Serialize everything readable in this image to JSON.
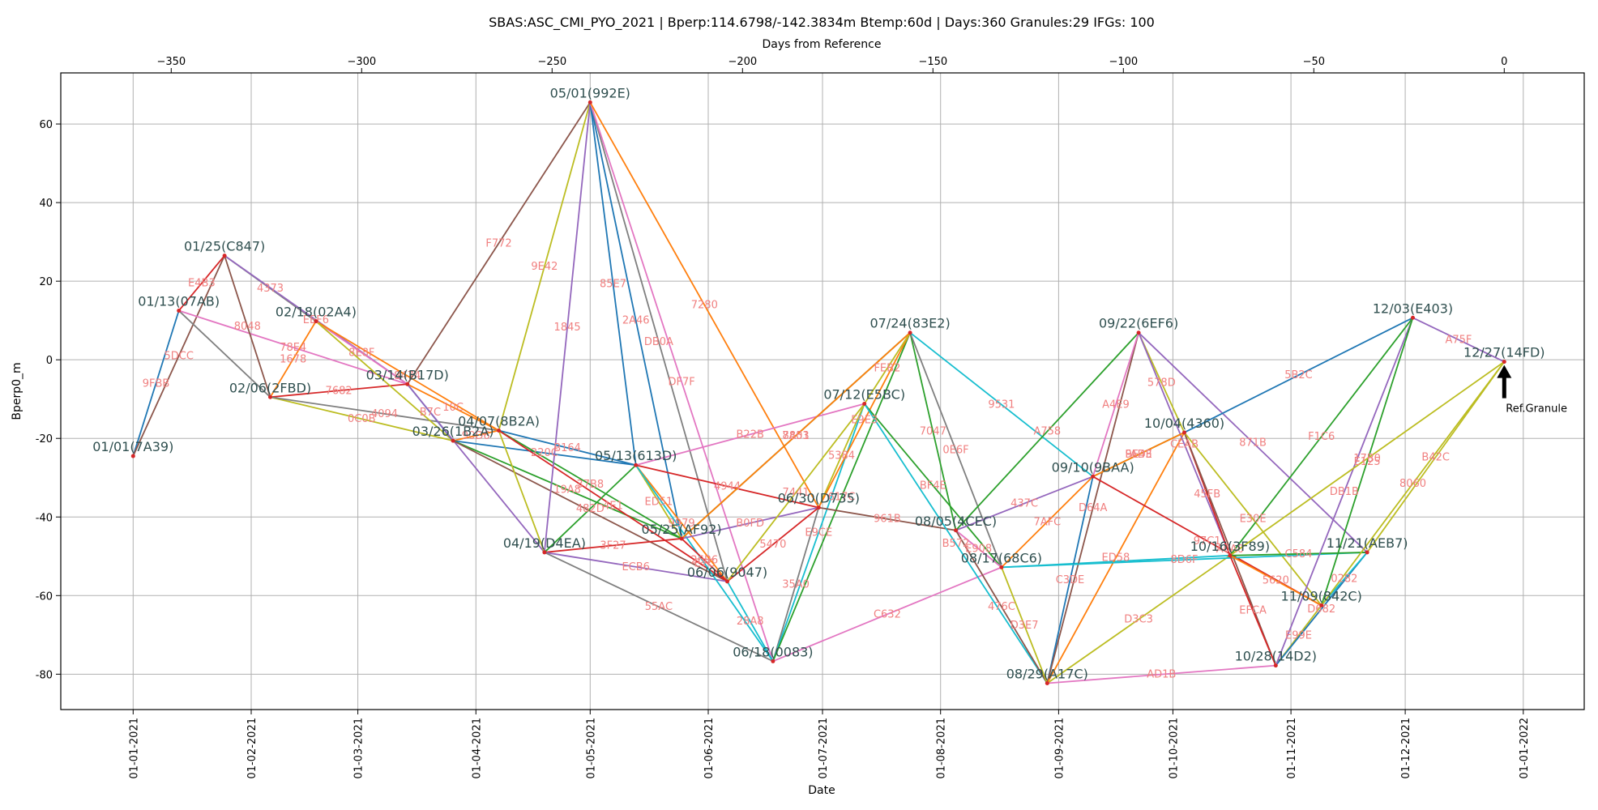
{
  "chart_data": {
    "type": "line",
    "title": "SBAS:ASC_CMI_PYO_2021 | Bperp:114.6798/-142.3834m Btemp:60d | Days:360 Granules:29 IFGs: 100",
    "xlabel": "Date",
    "ylabel": "Bperp0_m",
    "top_xlabel": "Days from Reference",
    "grid": true,
    "reference_date": "2021-12-27",
    "xlim": [
      "2020-12-13",
      "2022-01-17"
    ],
    "ylim": [
      -89,
      73
    ],
    "y_ticks": [
      -80,
      -60,
      -40,
      -20,
      0,
      20,
      40,
      60
    ],
    "x_ticks": [
      {
        "date": "2021-01-01",
        "label": "01-01-2021"
      },
      {
        "date": "2021-02-01",
        "label": "01-02-2021"
      },
      {
        "date": "2021-03-01",
        "label": "01-03-2021"
      },
      {
        "date": "2021-04-01",
        "label": "01-04-2021"
      },
      {
        "date": "2021-05-01",
        "label": "01-05-2021"
      },
      {
        "date": "2021-06-01",
        "label": "01-06-2021"
      },
      {
        "date": "2021-07-01",
        "label": "01-07-2021"
      },
      {
        "date": "2021-08-01",
        "label": "01-08-2021"
      },
      {
        "date": "2021-09-01",
        "label": "01-09-2021"
      },
      {
        "date": "2021-10-01",
        "label": "01-10-2021"
      },
      {
        "date": "2021-11-01",
        "label": "01-11-2021"
      },
      {
        "date": "2021-12-01",
        "label": "01-12-2021"
      },
      {
        "date": "2022-01-01",
        "label": "01-01-2022"
      }
    ],
    "top_ticks": [
      -350,
      -300,
      -250,
      -200,
      -150,
      -100,
      -50,
      0
    ],
    "reference_label": "Ref.Granule",
    "granules": [
      {
        "id": "A",
        "date": "2021-01-01",
        "bperp": -24.5,
        "label": "01/01(7A39)"
      },
      {
        "id": "B",
        "date": "2021-01-13",
        "bperp": 12.5,
        "label": "01/13(07AB)"
      },
      {
        "id": "C",
        "date": "2021-01-25",
        "bperp": 26.5,
        "label": "01/25(C847)"
      },
      {
        "id": "D",
        "date": "2021-02-06",
        "bperp": -9.5,
        "label": "02/06(2FBD)"
      },
      {
        "id": "E",
        "date": "2021-02-18",
        "bperp": 9.8,
        "label": "02/18(02A4)"
      },
      {
        "id": "F",
        "date": "2021-03-14",
        "bperp": -6.2,
        "label": "03/14(B17D)"
      },
      {
        "id": "G",
        "date": "2021-03-26",
        "bperp": -20.6,
        "label": "03/26(1B2A)"
      },
      {
        "id": "H",
        "date": "2021-04-07",
        "bperp": -18.0,
        "label": "04/07(8B2A)"
      },
      {
        "id": "I",
        "date": "2021-04-19",
        "bperp": -49.0,
        "label": "04/19(D4EA)"
      },
      {
        "id": "J",
        "date": "2021-05-01",
        "bperp": 65.5,
        "label": "05/01(992E)"
      },
      {
        "id": "K",
        "date": "2021-05-13",
        "bperp": -26.8,
        "label": "05/13(613D)"
      },
      {
        "id": "L",
        "date": "2021-05-25",
        "bperp": -45.5,
        "label": "05/25(AF92)"
      },
      {
        "id": "M",
        "date": "2021-06-06",
        "bperp": -56.4,
        "label": "06/06(9047)"
      },
      {
        "id": "N",
        "date": "2021-06-18",
        "bperp": -76.7,
        "label": "06/18(0083)"
      },
      {
        "id": "O",
        "date": "2021-06-30",
        "bperp": -37.6,
        "label": "06/30(D735)"
      },
      {
        "id": "P",
        "date": "2021-07-12",
        "bperp": -11.2,
        "label": "07/12(E5BC)"
      },
      {
        "id": "Q",
        "date": "2021-07-24",
        "bperp": 6.9,
        "label": "07/24(83E2)"
      },
      {
        "id": "R",
        "date": "2021-08-05",
        "bperp": -43.4,
        "label": "08/05(4CEC)"
      },
      {
        "id": "S",
        "date": "2021-08-17",
        "bperp": -52.8,
        "label": "08/17(68C6)"
      },
      {
        "id": "T",
        "date": "2021-08-29",
        "bperp": -82.3,
        "label": "08/29(A17C)"
      },
      {
        "id": "U",
        "date": "2021-09-10",
        "bperp": -29.7,
        "label": "09/10(9BAA)"
      },
      {
        "id": "V",
        "date": "2021-09-22",
        "bperp": 6.9,
        "label": "09/22(6EF6)"
      },
      {
        "id": "W",
        "date": "2021-10-04",
        "bperp": -18.5,
        "label": "10/04(4360)"
      },
      {
        "id": "X",
        "date": "2021-10-16",
        "bperp": -49.8,
        "label": "10/16(3F89)"
      },
      {
        "id": "Y",
        "date": "2021-10-28",
        "bperp": -77.8,
        "label": "10/28(14D2)"
      },
      {
        "id": "Z",
        "date": "2021-11-09",
        "bperp": -62.5,
        "label": "11/09(842C)"
      },
      {
        "id": "a",
        "date": "2021-11-21",
        "bperp": -49.0,
        "label": "11/21(AEB7)"
      },
      {
        "id": "b",
        "date": "2021-12-03",
        "bperp": 10.7,
        "label": "12/03(E403)"
      },
      {
        "id": "c",
        "date": "2021-12-27",
        "bperp": -0.5,
        "label": "12/27(14FD)"
      }
    ],
    "ifgs": [
      {
        "from": "A",
        "to": "B",
        "label": "9FBB",
        "color": "#1f77b4"
      },
      {
        "from": "A",
        "to": "C",
        "label": "5DCC",
        "color": "#8c564b"
      },
      {
        "from": "B",
        "to": "C",
        "label": "E4B3",
        "color": "#d62728"
      },
      {
        "from": "B",
        "to": "D",
        "label": "",
        "color": "#7f7f7f"
      },
      {
        "from": "B",
        "to": "F",
        "label": "78E4",
        "color": "#e377c2"
      },
      {
        "from": "C",
        "to": "D",
        "label": "8048",
        "color": "#8c564b"
      },
      {
        "from": "C",
        "to": "E",
        "label": "4373",
        "color": "#7f7f7f"
      },
      {
        "from": "C",
        "to": "F",
        "label": "EEF6",
        "color": "#9467bd"
      },
      {
        "from": "D",
        "to": "E",
        "label": "1678",
        "color": "#ff7f0e"
      },
      {
        "from": "D",
        "to": "F",
        "label": "7682",
        "color": "#d62728"
      },
      {
        "from": "D",
        "to": "G",
        "label": "0C0B",
        "color": "#bcbd22"
      },
      {
        "from": "D",
        "to": "H",
        "label": "4094",
        "color": "#7f7f7f"
      },
      {
        "from": "E",
        "to": "F",
        "label": "8E8F",
        "color": "#e377c2"
      },
      {
        "from": "E",
        "to": "H",
        "label": "8474",
        "color": "#ff7f0e"
      },
      {
        "from": "E",
        "to": "G",
        "label": "",
        "color": "#bcbd22"
      },
      {
        "from": "F",
        "to": "G",
        "label": "B7C",
        "color": "#1f77b4"
      },
      {
        "from": "F",
        "to": "H",
        "label": "10C",
        "color": "#ff7f0e"
      },
      {
        "from": "F",
        "to": "I",
        "label": "",
        "color": "#9467bd"
      },
      {
        "from": "F",
        "to": "J",
        "label": "F772",
        "color": "#8c564b"
      },
      {
        "from": "G",
        "to": "H",
        "label": "90D6",
        "color": "#ff7f0e"
      },
      {
        "from": "G",
        "to": "K",
        "label": "220C",
        "color": "#1f77b4"
      },
      {
        "from": "G",
        "to": "L",
        "label": "19A8",
        "color": "#2ca02c"
      },
      {
        "from": "G",
        "to": "M",
        "label": "",
        "color": "#8c564b"
      },
      {
        "from": "H",
        "to": "I",
        "label": "",
        "color": "#bcbd22"
      },
      {
        "from": "H",
        "to": "J",
        "label": "9E42",
        "color": "#bcbd22"
      },
      {
        "from": "H",
        "to": "K",
        "label": "B164",
        "color": "#1f77b4"
      },
      {
        "from": "H",
        "to": "L",
        "label": "37B8",
        "color": "#2ca02c"
      },
      {
        "from": "H",
        "to": "M",
        "label": "4E1",
        "color": "#d62728"
      },
      {
        "from": "I",
        "to": "J",
        "label": "1845",
        "color": "#9467bd"
      },
      {
        "from": "I",
        "to": "L",
        "label": "3F27",
        "color": "#d62728"
      },
      {
        "from": "I",
        "to": "M",
        "label": "ECB6",
        "color": "#9467bd"
      },
      {
        "from": "I",
        "to": "N",
        "label": "55AC",
        "color": "#7f7f7f"
      },
      {
        "from": "J",
        "to": "K",
        "label": "85E7",
        "color": "#1f77b4"
      },
      {
        "from": "J",
        "to": "L",
        "label": "2A46",
        "color": "#1f77b4"
      },
      {
        "from": "J",
        "to": "M",
        "label": "DB0A",
        "color": "#7f7f7f"
      },
      {
        "from": "J",
        "to": "N",
        "label": "DF7F",
        "color": "#e377c2"
      },
      {
        "from": "J",
        "to": "O",
        "label": "7280",
        "color": "#ff7f0e"
      },
      {
        "from": "K",
        "to": "L",
        "label": "ED51",
        "color": "#bcbd22"
      },
      {
        "from": "K",
        "to": "M",
        "label": "9979",
        "color": "#ff7f0e"
      },
      {
        "from": "K",
        "to": "N",
        "label": "E7C",
        "color": "#17becf"
      },
      {
        "from": "K",
        "to": "O",
        "label": "4944",
        "color": "#d62728"
      },
      {
        "from": "K",
        "to": "P",
        "label": "B22B",
        "color": "#e377c2"
      },
      {
        "from": "L",
        "to": "M",
        "label": "26B6",
        "color": "#d62728"
      },
      {
        "from": "L",
        "to": "O",
        "label": "B0FD",
        "color": "#9467bd"
      },
      {
        "from": "L",
        "to": "Q",
        "label": "7A51",
        "color": "#2ca02c"
      },
      {
        "from": "M",
        "to": "N",
        "label": "28A8",
        "color": "#17becf"
      },
      {
        "from": "M",
        "to": "O",
        "label": "5470",
        "color": "#d62728"
      },
      {
        "from": "M",
        "to": "P",
        "label": "7441",
        "color": "#bcbd22"
      },
      {
        "from": "N",
        "to": "O",
        "label": "35A0",
        "color": "#7f7f7f"
      },
      {
        "from": "N",
        "to": "P",
        "label": "E9CE",
        "color": "#17becf"
      },
      {
        "from": "N",
        "to": "Q",
        "label": "617C",
        "color": "#2ca02c"
      },
      {
        "from": "N",
        "to": "S",
        "label": "C632",
        "color": "#e377c2"
      },
      {
        "from": "O",
        "to": "P",
        "label": "5384",
        "color": "#bcbd22"
      },
      {
        "from": "O",
        "to": "Q",
        "label": "E9E3",
        "color": "#ff7f0e"
      },
      {
        "from": "O",
        "to": "R",
        "label": "961B",
        "color": "#8c564b"
      },
      {
        "from": "P",
        "to": "Q",
        "label": "FEB2",
        "color": "#bcbd22"
      },
      {
        "from": "P",
        "to": "S",
        "label": "BF4E",
        "color": "#2ca02c"
      },
      {
        "from": "P",
        "to": "T",
        "label": "B572",
        "color": "#17becf"
      },
      {
        "from": "Q",
        "to": "R",
        "label": "7047",
        "color": "#2ca02c"
      },
      {
        "from": "Q",
        "to": "S",
        "label": "0E6F",
        "color": "#7f7f7f"
      },
      {
        "from": "Q",
        "to": "U",
        "label": "9531",
        "color": "#17becf"
      },
      {
        "from": "Q",
        "to": "L",
        "label": "8803",
        "color": "#ff7f0e"
      },
      {
        "from": "R",
        "to": "S",
        "label": "E908",
        "color": "#e377c2"
      },
      {
        "from": "R",
        "to": "T",
        "label": "476C",
        "color": "#8c564b"
      },
      {
        "from": "R",
        "to": "U",
        "label": "437C",
        "color": "#9467bd"
      },
      {
        "from": "R",
        "to": "V",
        "label": "A758",
        "color": "#2ca02c"
      },
      {
        "from": "S",
        "to": "T",
        "label": "D3E7",
        "color": "#bcbd22"
      },
      {
        "from": "S",
        "to": "U",
        "label": "7AFC",
        "color": "#ff7f0e"
      },
      {
        "from": "S",
        "to": "X",
        "label": "",
        "color": "#17becf"
      },
      {
        "from": "T",
        "to": "U",
        "label": "C3DE",
        "color": "#1f77b4"
      },
      {
        "from": "T",
        "to": "V",
        "label": "D64A",
        "color": "#8c564b"
      },
      {
        "from": "T",
        "to": "W",
        "label": "ED58",
        "color": "#ff7f0e"
      },
      {
        "from": "T",
        "to": "X",
        "label": "D3C3",
        "color": "#bcbd22"
      },
      {
        "from": "T",
        "to": "Y",
        "label": "AD1B",
        "color": "#e377c2"
      },
      {
        "from": "U",
        "to": "V",
        "label": "A4E9",
        "color": "#e377c2"
      },
      {
        "from": "U",
        "to": "W",
        "label": "FADE",
        "color": "#2ca02c"
      },
      {
        "from": "U",
        "to": "Z",
        "label": "97C1",
        "color": "#d62728"
      },
      {
        "from": "V",
        "to": "W",
        "label": "578D",
        "color": "#bcbd22"
      },
      {
        "from": "V",
        "to": "X",
        "label": "CEAB",
        "color": "#9467bd"
      },
      {
        "from": "V",
        "to": "a",
        "label": "871B",
        "color": "#9467bd"
      },
      {
        "from": "W",
        "to": "X",
        "label": "45FB",
        "color": "#d62728"
      },
      {
        "from": "W",
        "to": "Y",
        "label": "A0A0",
        "color": "#8c564b"
      },
      {
        "from": "W",
        "to": "Z",
        "label": "E30E",
        "color": "#bcbd22"
      },
      {
        "from": "W",
        "to": "b",
        "label": "5B2C",
        "color": "#1f77b4"
      },
      {
        "from": "S",
        "to": "a",
        "label": "8D6F",
        "color": "#17becf"
      },
      {
        "from": "X",
        "to": "Y",
        "label": "EFCA",
        "color": "#d62728"
      },
      {
        "from": "X",
        "to": "Z",
        "label": "5620",
        "color": "#ff7f0e"
      },
      {
        "from": "X",
        "to": "a",
        "label": "C584",
        "color": "#2ca02c"
      },
      {
        "from": "X",
        "to": "b",
        "label": "F1C6",
        "color": "#2ca02c"
      },
      {
        "from": "Y",
        "to": "Z",
        "label": "E99E",
        "color": "#bcbd22"
      },
      {
        "from": "Y",
        "to": "a",
        "label": "D682",
        "color": "#1f77b4"
      },
      {
        "from": "Y",
        "to": "b",
        "label": "DB1B",
        "color": "#9467bd"
      },
      {
        "from": "Z",
        "to": "a",
        "label": "0282",
        "color": "#17becf"
      },
      {
        "from": "Z",
        "to": "b",
        "label": "E125",
        "color": "#2ca02c"
      },
      {
        "from": "Z",
        "to": "c",
        "label": "8060",
        "color": "#bcbd22"
      },
      {
        "from": "a",
        "to": "c",
        "label": "B42C",
        "color": "#bcbd22"
      },
      {
        "from": "b",
        "to": "c",
        "label": "A75F",
        "color": "#9467bd"
      },
      {
        "from": "X",
        "to": "c",
        "label": "17B0",
        "color": "#bcbd22"
      },
      {
        "from": "W",
        "to": "U",
        "label": "9E43",
        "color": "#ff7f0e"
      },
      {
        "from": "K",
        "to": "I",
        "label": "482D",
        "color": "#2ca02c"
      }
    ]
  }
}
